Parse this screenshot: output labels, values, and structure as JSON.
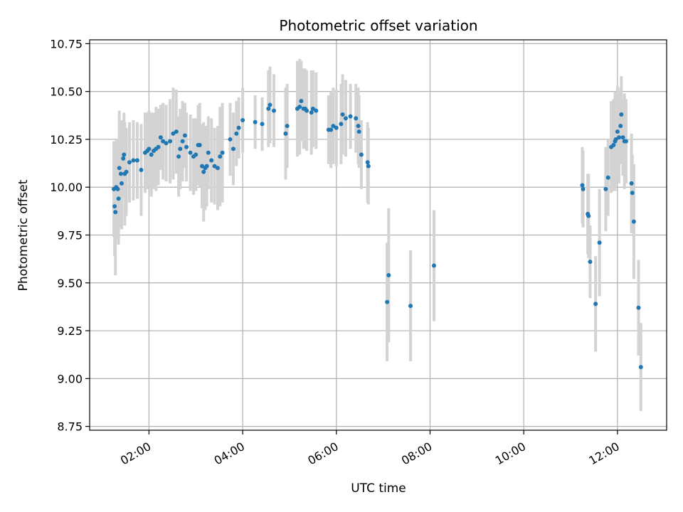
{
  "chart_data": {
    "type": "scatter",
    "title": "Photometric offset variation",
    "xlabel": "UTC time",
    "ylabel": "Photometric offset",
    "x_ticks": [
      "02:00",
      "04:00",
      "06:00",
      "08:00",
      "10:00",
      "12:00"
    ],
    "y_ticks": [
      "8.75",
      "9.00",
      "9.25",
      "9.50",
      "9.75",
      "10.00",
      "10.25",
      "10.50",
      "10.75"
    ],
    "xlim": [
      "00:44",
      "13:03"
    ],
    "ylim": [
      8.73,
      10.77
    ],
    "grid": true,
    "colors": {
      "point": "#1f77b4",
      "errorbar": "#d3d3d3",
      "grid": "#b0b0b0"
    },
    "series": [
      {
        "points": [
          {
            "x": "01:15",
            "y": 9.99,
            "err": 0.25
          },
          {
            "x": "01:16",
            "y": 9.9,
            "err": 0.26
          },
          {
            "x": "01:17",
            "y": 9.87,
            "err": 0.33
          },
          {
            "x": "01:18",
            "y": 10.0,
            "err": 0.25
          },
          {
            "x": "01:20",
            "y": 9.99,
            "err": 0.26
          },
          {
            "x": "01:21",
            "y": 9.94,
            "err": 0.24
          },
          {
            "x": "01:22",
            "y": 10.1,
            "err": 0.3
          },
          {
            "x": "01:24",
            "y": 10.07,
            "err": 0.28
          },
          {
            "x": "01:25",
            "y": 10.02,
            "err": 0.24
          },
          {
            "x": "01:27",
            "y": 10.15,
            "err": 0.2
          },
          {
            "x": "01:28",
            "y": 10.17,
            "err": 0.22
          },
          {
            "x": "01:29",
            "y": 10.07,
            "err": 0.27
          },
          {
            "x": "01:31",
            "y": 10.08,
            "err": 0.23
          },
          {
            "x": "01:35",
            "y": 10.13,
            "err": 0.21
          },
          {
            "x": "01:40",
            "y": 10.14,
            "err": 0.21
          },
          {
            "x": "01:45",
            "y": 10.14,
            "err": 0.2
          },
          {
            "x": "01:50",
            "y": 10.09,
            "err": 0.24
          },
          {
            "x": "01:55",
            "y": 10.18,
            "err": 0.21
          },
          {
            "x": "01:58",
            "y": 10.19,
            "err": 0.2
          },
          {
            "x": "02:00",
            "y": 10.2,
            "err": 0.2
          },
          {
            "x": "02:03",
            "y": 10.17,
            "err": 0.22
          },
          {
            "x": "02:06",
            "y": 10.19,
            "err": 0.2
          },
          {
            "x": "02:09",
            "y": 10.2,
            "err": 0.22
          },
          {
            "x": "02:12",
            "y": 10.21,
            "err": 0.2
          },
          {
            "x": "02:15",
            "y": 10.26,
            "err": 0.17
          },
          {
            "x": "02:18",
            "y": 10.24,
            "err": 0.2
          },
          {
            "x": "02:22",
            "y": 10.23,
            "err": 0.2
          },
          {
            "x": "02:27",
            "y": 10.24,
            "err": 0.22
          },
          {
            "x": "02:31",
            "y": 10.28,
            "err": 0.24
          },
          {
            "x": "02:35",
            "y": 10.29,
            "err": 0.22
          },
          {
            "x": "02:38",
            "y": 10.16,
            "err": 0.21
          },
          {
            "x": "02:40",
            "y": 10.2,
            "err": 0.21
          },
          {
            "x": "02:43",
            "y": 10.24,
            "err": 0.21
          },
          {
            "x": "02:46",
            "y": 10.27,
            "err": 0.17
          },
          {
            "x": "02:48",
            "y": 10.21,
            "err": 0.18
          },
          {
            "x": "02:53",
            "y": 10.18,
            "err": 0.2
          },
          {
            "x": "02:57",
            "y": 10.16,
            "err": 0.2
          },
          {
            "x": "03:00",
            "y": 10.17,
            "err": 0.19
          },
          {
            "x": "03:03",
            "y": 10.22,
            "err": 0.21
          },
          {
            "x": "03:05",
            "y": 10.22,
            "err": 0.22
          },
          {
            "x": "03:08",
            "y": 10.11,
            "err": 0.22
          },
          {
            "x": "03:10",
            "y": 10.08,
            "err": 0.26
          },
          {
            "x": "03:12",
            "y": 10.1,
            "err": 0.22
          },
          {
            "x": "03:14",
            "y": 10.11,
            "err": 0.21
          },
          {
            "x": "03:16",
            "y": 10.18,
            "err": 0.19
          },
          {
            "x": "03:20",
            "y": 10.14,
            "err": 0.22
          },
          {
            "x": "03:24",
            "y": 10.11,
            "err": 0.2
          },
          {
            "x": "03:28",
            "y": 10.1,
            "err": 0.22
          },
          {
            "x": "03:31",
            "y": 10.16,
            "err": 0.26
          },
          {
            "x": "03:34",
            "y": 10.18,
            "err": 0.26
          },
          {
            "x": "03:44",
            "y": 10.25,
            "err": 0.19
          },
          {
            "x": "03:48",
            "y": 10.2,
            "err": 0.19
          },
          {
            "x": "03:52",
            "y": 10.28,
            "err": 0.17
          },
          {
            "x": "03:55",
            "y": 10.31,
            "err": 0.16
          },
          {
            "x": "04:00",
            "y": 10.35,
            "err": 0.17
          },
          {
            "x": "04:16",
            "y": 10.34,
            "err": 0.14
          },
          {
            "x": "04:25",
            "y": 10.33,
            "err": 0.14
          },
          {
            "x": "04:33",
            "y": 10.41,
            "err": 0.2
          },
          {
            "x": "04:35",
            "y": 10.43,
            "err": 0.2
          },
          {
            "x": "04:40",
            "y": 10.4,
            "err": 0.19
          },
          {
            "x": "04:55",
            "y": 10.28,
            "err": 0.24
          },
          {
            "x": "04:57",
            "y": 10.32,
            "err": 0.22
          },
          {
            "x": "05:10",
            "y": 10.41,
            "err": 0.25
          },
          {
            "x": "05:13",
            "y": 10.42,
            "err": 0.25
          },
          {
            "x": "05:15",
            "y": 10.45,
            "err": 0.21
          },
          {
            "x": "05:18",
            "y": 10.41,
            "err": 0.21
          },
          {
            "x": "05:20",
            "y": 10.41,
            "err": 0.21
          },
          {
            "x": "05:22",
            "y": 10.4,
            "err": 0.21
          },
          {
            "x": "05:28",
            "y": 10.39,
            "err": 0.22
          },
          {
            "x": "05:30",
            "y": 10.41,
            "err": 0.2
          },
          {
            "x": "05:34",
            "y": 10.4,
            "err": 0.2
          },
          {
            "x": "05:50",
            "y": 10.3,
            "err": 0.18
          },
          {
            "x": "05:53",
            "y": 10.3,
            "err": 0.2
          },
          {
            "x": "05:56",
            "y": 10.32,
            "err": 0.2
          },
          {
            "x": "06:00",
            "y": 10.31,
            "err": 0.2
          },
          {
            "x": "06:06",
            "y": 10.33,
            "err": 0.21
          },
          {
            "x": "06:08",
            "y": 10.38,
            "err": 0.21
          },
          {
            "x": "06:12",
            "y": 10.36,
            "err": 0.2
          },
          {
            "x": "06:18",
            "y": 10.37,
            "err": 0.17
          },
          {
            "x": "06:25",
            "y": 10.36,
            "err": 0.18
          },
          {
            "x": "06:28",
            "y": 10.32,
            "err": 0.2
          },
          {
            "x": "06:29",
            "y": 10.29,
            "err": 0.19
          },
          {
            "x": "06:32",
            "y": 10.17,
            "err": 0.18
          },
          {
            "x": "06:40",
            "y": 10.13,
            "err": 0.21
          },
          {
            "x": "06:41",
            "y": 10.11,
            "err": 0.2
          },
          {
            "x": "07:05",
            "y": 9.4,
            "err": 0.31
          },
          {
            "x": "07:07",
            "y": 9.54,
            "err": 0.35
          },
          {
            "x": "07:35",
            "y": 9.38,
            "err": 0.29
          },
          {
            "x": "08:05",
            "y": 9.59,
            "err": 0.29
          },
          {
            "x": "11:15",
            "y": 10.01,
            "err": 0.2
          },
          {
            "x": "11:16",
            "y": 9.99,
            "err": 0.2
          },
          {
            "x": "11:22",
            "y": 9.86,
            "err": 0.21
          },
          {
            "x": "11:23",
            "y": 9.85,
            "err": 0.22
          },
          {
            "x": "11:25",
            "y": 9.61,
            "err": 0.19
          },
          {
            "x": "11:32",
            "y": 9.39,
            "err": 0.25
          },
          {
            "x": "11:37",
            "y": 9.71,
            "err": 0.28
          },
          {
            "x": "11:45",
            "y": 9.99,
            "err": 0.22
          },
          {
            "x": "11:48",
            "y": 10.05,
            "err": 0.2
          },
          {
            "x": "11:52",
            "y": 10.21,
            "err": 0.24
          },
          {
            "x": "11:55",
            "y": 10.22,
            "err": 0.24
          },
          {
            "x": "11:57",
            "y": 10.24,
            "err": 0.26
          },
          {
            "x": "11:58",
            "y": 10.25,
            "err": 0.24
          },
          {
            "x": "12:00",
            "y": 10.29,
            "err": 0.24
          },
          {
            "x": "12:02",
            "y": 10.26,
            "err": 0.24
          },
          {
            "x": "12:04",
            "y": 10.32,
            "err": 0.2
          },
          {
            "x": "12:05",
            "y": 10.38,
            "err": 0.2
          },
          {
            "x": "12:07",
            "y": 10.26,
            "err": 0.2
          },
          {
            "x": "12:09",
            "y": 10.24,
            "err": 0.25
          },
          {
            "x": "12:11",
            "y": 10.24,
            "err": 0.22
          },
          {
            "x": "12:18",
            "y": 10.02,
            "err": 0.26
          },
          {
            "x": "12:19",
            "y": 9.97,
            "err": 0.2
          },
          {
            "x": "12:21",
            "y": 9.82,
            "err": 0.3
          },
          {
            "x": "12:27",
            "y": 9.37,
            "err": 0.25
          },
          {
            "x": "12:30",
            "y": 9.06,
            "err": 0.23
          }
        ]
      }
    ]
  }
}
